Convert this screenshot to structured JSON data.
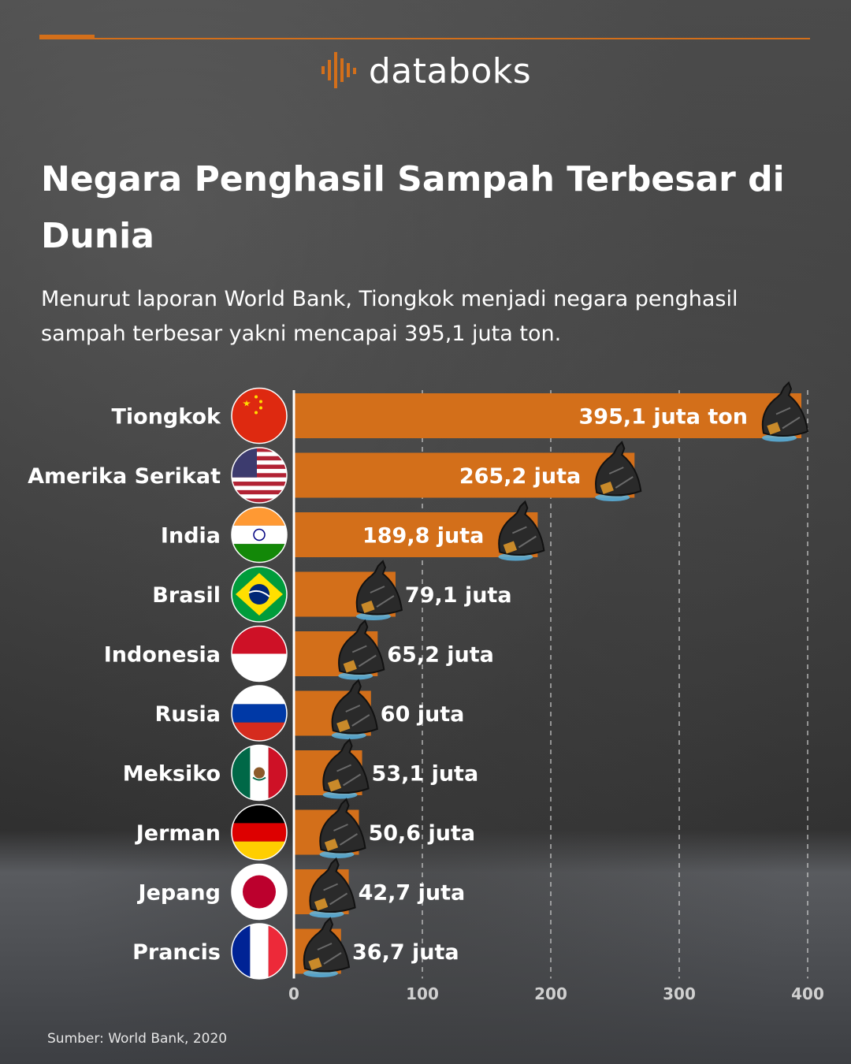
{
  "brand": {
    "name": "databoks",
    "accent": "#d36f1a"
  },
  "header": {
    "title": "Negara Penghasil Sampah Terbesar di Dunia",
    "subtitle": "Menurut laporan World Bank, Tiongkok menjadi negara penghasil sampah terbesar yakni mencapai 395,1 juta ton."
  },
  "footer": {
    "source": "Sumber: World Bank, 2020"
  },
  "chart_data": {
    "type": "bar",
    "orientation": "horizontal",
    "title": "Negara Penghasil Sampah Terbesar di Dunia",
    "xlabel": "",
    "ylabel": "",
    "xlim": [
      0,
      400
    ],
    "ticks": [
      0,
      100,
      200,
      300,
      400
    ],
    "tick_labels": [
      "0",
      "100",
      "200",
      "300",
      "400"
    ],
    "grid": "vertical dashed",
    "bar_color": "#d36f1a",
    "categories": [
      "Tiongkok",
      "Amerika Serikat",
      "India",
      "Brasil",
      "Indonesia",
      "Rusia",
      "Meksiko",
      "Jerman",
      "Jepang",
      "Prancis"
    ],
    "values": [
      395.1,
      265.2,
      189.8,
      79.1,
      65.2,
      60,
      53.1,
      50.6,
      42.7,
      36.7
    ],
    "value_labels": [
      "395,1 juta ton",
      "265,2 juta",
      "189,8 juta",
      "79,1 juta",
      "65,2 juta",
      "60 juta",
      "53,1 juta",
      "50,6 juta",
      "42,7 juta",
      "36,7 juta"
    ],
    "flags": [
      "china-flag",
      "usa-flag",
      "india-flag",
      "brazil-flag",
      "indonesia-flag",
      "russia-flag",
      "mexico-flag",
      "germany-flag",
      "japan-flag",
      "france-flag"
    ],
    "bar_end_icon": "trash-bag-icon"
  }
}
